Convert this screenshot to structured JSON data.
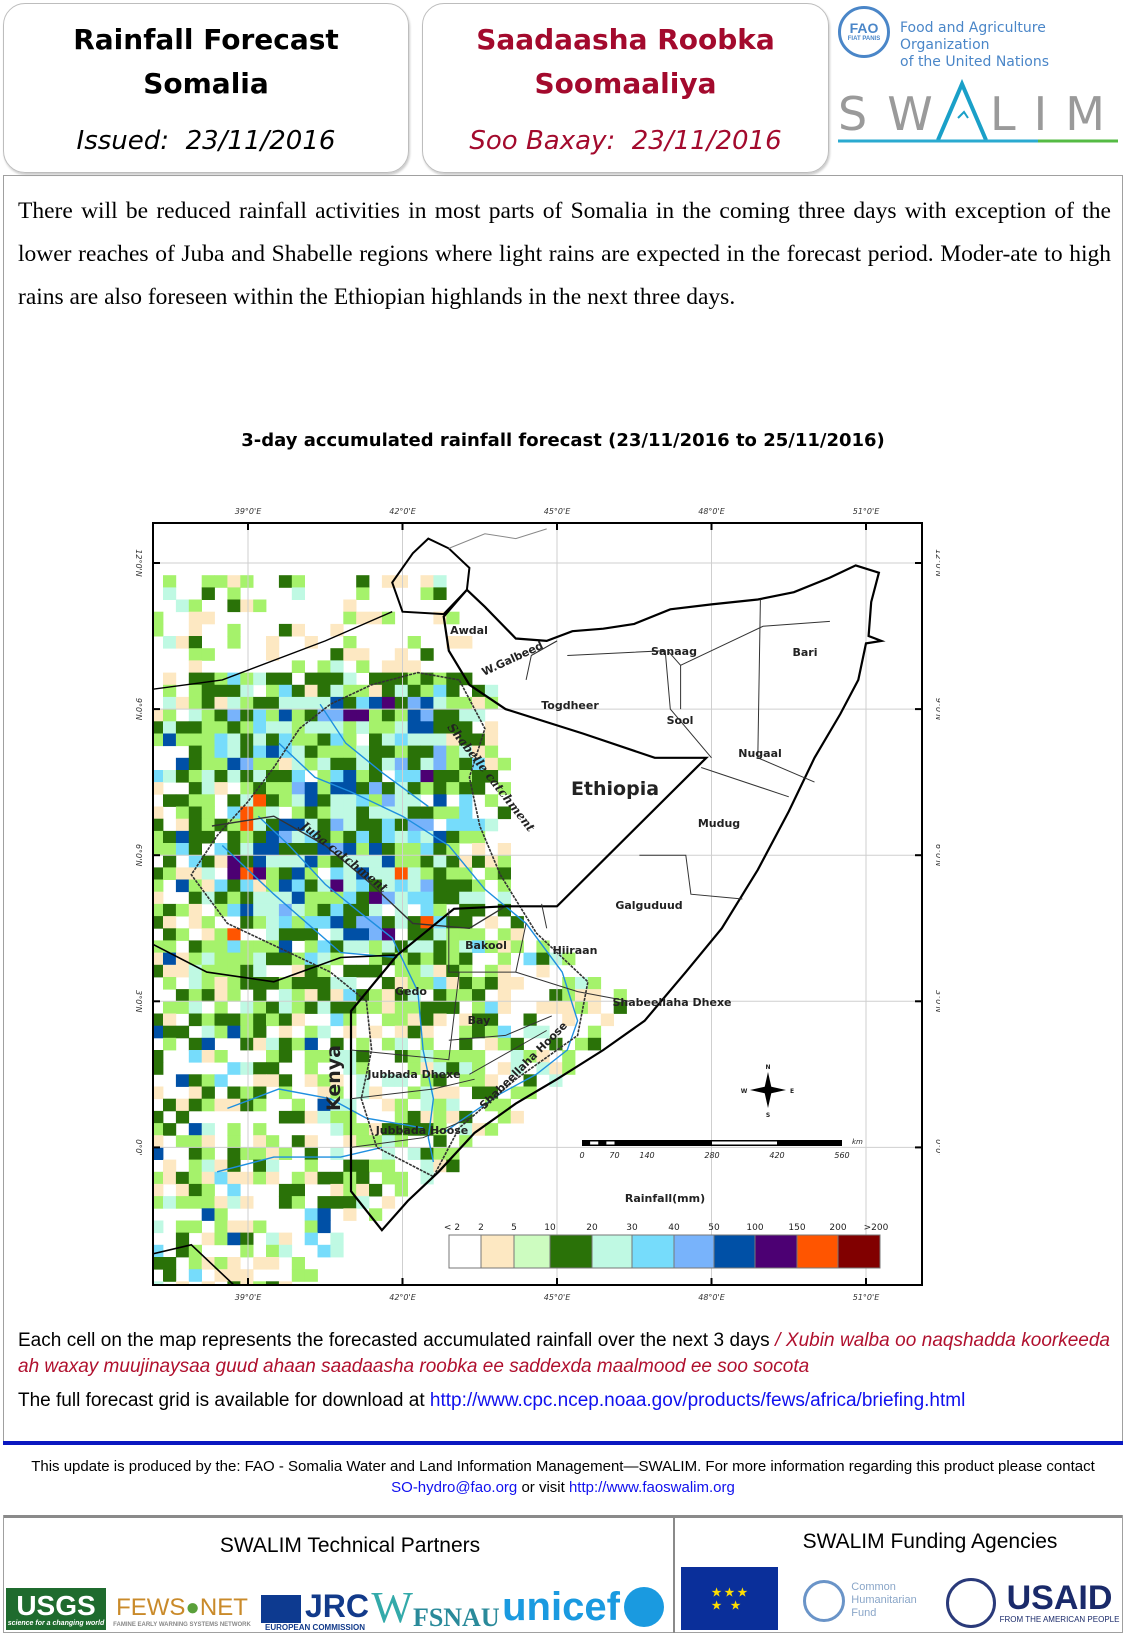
{
  "header": {
    "en": {
      "title_line1": "Rainfall Forecast",
      "title_line2": "Somalia",
      "issued_label": "Issued:",
      "issued_date": "23/11/2016"
    },
    "so": {
      "title_line1": "Saadaasha Roobka",
      "title_line2": "Soomaaliya",
      "issued_label": "Soo Baxay:",
      "issued_date": "23/11/2016"
    },
    "fao": {
      "line1": "Food and Agriculture Organization",
      "line2": "of the United Nations",
      "emblem": "FAO",
      "motto": "FIAT PANIS"
    },
    "swalim_logo": "SWALIM"
  },
  "summary": "There will be reduced rainfall activities in most parts of Somalia in the coming three days with exception of the lower reaches of Juba and Shabelle regions where light rains are expected in the forecast period. Moder-ate to high rains are also foreseen within the Ethiopian highlands in the next three days.",
  "map": {
    "title": "3-day accumulated rainfall forecast  (23/11/2016  to 25/11/2016)",
    "lon_labels": [
      "39°0'E",
      "42°0'E",
      "45°0'E",
      "48°0'E",
      "51°0'E"
    ],
    "lat_labels": [
      "12°0'N",
      "9°0'N",
      "6°0'N",
      "3°0'N",
      "0°0'"
    ],
    "regions": {
      "awdal": "Awdal",
      "w_galbeed": "W.Galbeed",
      "sanaag": "Sanaag",
      "bari": "Bari",
      "togdheer": "Togdheer",
      "sool": "Sool",
      "nugaal": "Nugaal",
      "ethiopia": "Ethiopia",
      "mudug": "Mudug",
      "galguduud": "Galguduud",
      "bakool": "Bakool",
      "hiiraan": "Hiiraan",
      "gedo": "Gedo",
      "shabeellaha_dhexe": "Shabeellaha Dhexe",
      "bay": "Bay",
      "shabeellaha_hoose": "Shabeellaha Hoose",
      "jubbada_dhexe": "Jubbada Dhexe",
      "kenya": "Kenya",
      "jubbada_hoose": "Jubbada Hoose",
      "juba_catchment": "Juba catchment",
      "shabelle_catchment": "Shabelle catchment"
    },
    "scale_bar": {
      "labels": [
        "0",
        "70",
        "140",
        "280",
        "420",
        "560"
      ],
      "unit": "km"
    },
    "north_arrow": {
      "n": "N",
      "s": "S",
      "e": "E",
      "w": "W"
    },
    "legend": {
      "title": "Rainfall(mm)",
      "labels": [
        "< 2",
        "2",
        "5",
        "10",
        "20",
        "30",
        "40",
        "50",
        "100",
        "150",
        "200",
        ">200"
      ],
      "colors": [
        "#ffffff",
        "#fde8c2",
        "#cdfcc0",
        "#2a7208",
        "#bff9e3",
        "#76dcfb",
        "#78b3fb",
        "#0050a6",
        "#4c0073",
        "#ff5500",
        "#810000"
      ]
    },
    "map_green": "#a5f26b"
  },
  "caption": {
    "en": "Each cell on the map represents the forecasted accumulated rainfall over the next 3 days",
    "so": "/ Xubin walba oo naqshadda koorkeeda ah waxay muujinaysaa guud ahaan saadaasha roobka ee saddexda maalmood ee soo socota",
    "download_text": "The full forecast grid is available for download at",
    "download_link": "http://www.cpc.ncep.noaa.gov/products/fews/africa/briefing.html"
  },
  "footer": {
    "text": "This update is produced by the: FAO - Somalia Water and Land Information Management—SWALIM. For more information regarding this product please contact",
    "email": "SO-hydro@fao.org",
    "or_visit": "or visit",
    "website": "http://www.faoswalim.org"
  },
  "partners": {
    "technical_title": "SWALIM Technical Partners",
    "funding_title": "SWALIM Funding Agencies",
    "usgs": {
      "name": "USGS",
      "tagline": "science for a changing world"
    },
    "fewsnet": {
      "name1": "FEWS",
      "name2": "NET",
      "tagline": "FAMINE EARLY WARNING SYSTEMS NETWORK"
    },
    "jrc": {
      "name": "JRC",
      "tagline": "EUROPEAN COMMISSION"
    },
    "fsnau": "FSNAU",
    "unicef": "unicef",
    "chf": {
      "l1": "Common",
      "l2": "Humanitarian",
      "l3": "Fund"
    },
    "usaid": {
      "name": "USAID",
      "tagline": "FROM THE AMERICAN PEOPLE"
    }
  }
}
